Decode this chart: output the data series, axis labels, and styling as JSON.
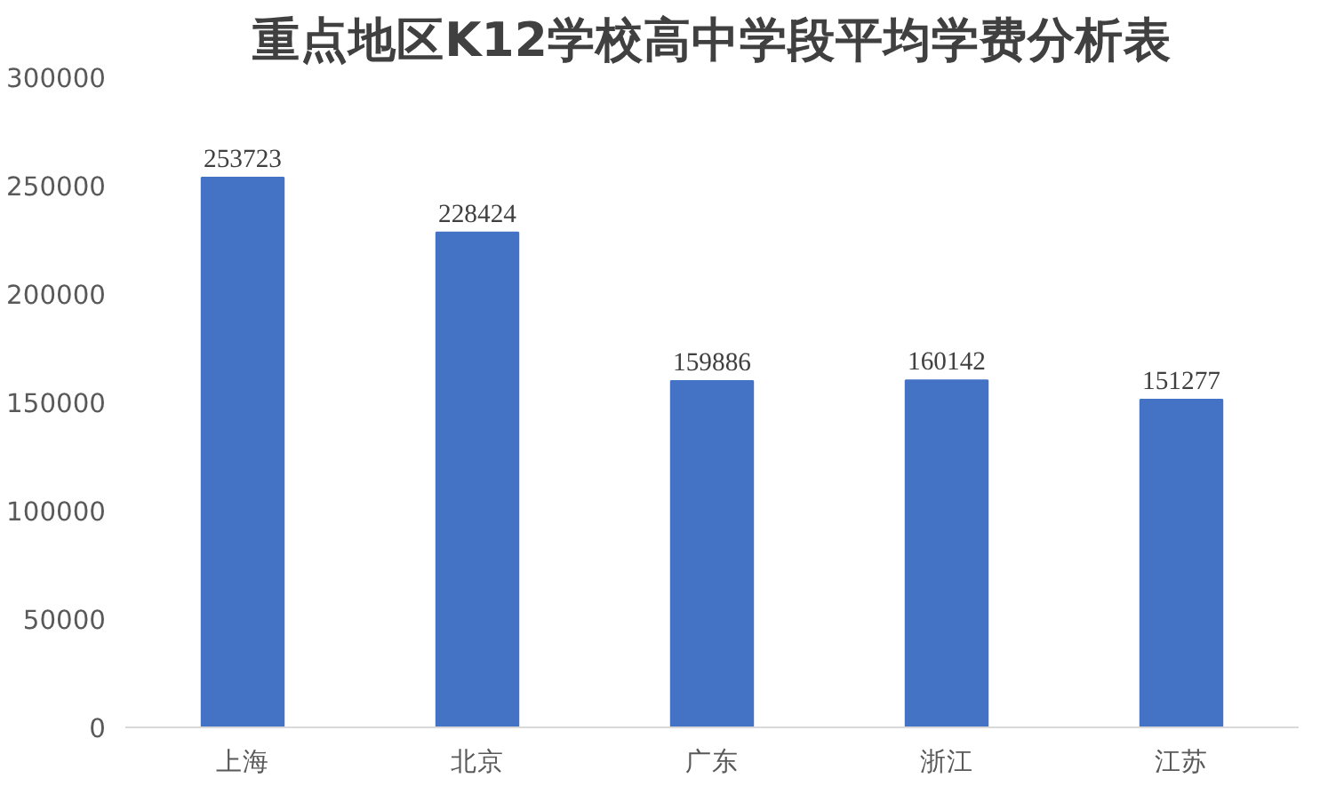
{
  "chart_data": {
    "type": "bar",
    "title": "重点地区K12学校高中学段平均学费分析表",
    "categories": [
      "上海",
      "北京",
      "广东",
      "浙江",
      "江苏"
    ],
    "values": [
      253723,
      228424,
      159886,
      160142,
      151277
    ],
    "color": "#4472c4",
    "ylim": [
      0,
      300000
    ],
    "yticks": [
      0,
      50000,
      100000,
      150000,
      200000,
      250000,
      300000
    ],
    "data_labels": true,
    "grid": false
  }
}
